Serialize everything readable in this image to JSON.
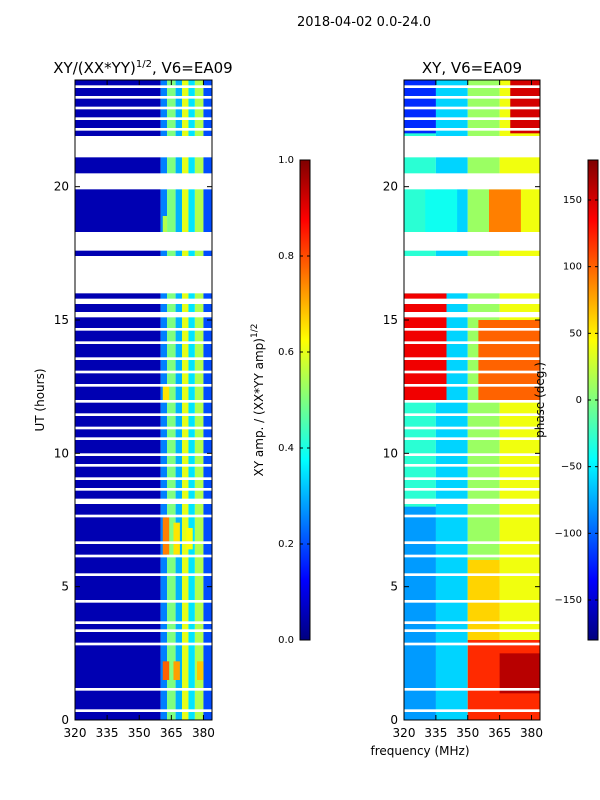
{
  "figure": {
    "suptitle": "2018-04-02 0.0-24.0",
    "xlabel": "frequency (MHz)"
  },
  "colormap": {
    "name": "jet",
    "stops": [
      "#00007f",
      "#0000ff",
      "#007fff",
      "#00ffff",
      "#7fff7f",
      "#ffff00",
      "#ff7f00",
      "#ff0000",
      "#7f0000"
    ]
  },
  "chart_data": [
    {
      "type": "heatmap",
      "title_main": "XY/(XX*YY)",
      "title_exp": "1/2",
      "title_rest": ", V6=EA09",
      "ylabel": "UT (hours)",
      "xlim": [
        320,
        384
      ],
      "ylim": [
        0,
        24
      ],
      "xticks": [
        320,
        335,
        350,
        365,
        380
      ],
      "yticks": [
        0,
        5,
        10,
        15,
        20
      ],
      "colorbar": {
        "label_main": "XY amp. / (XX*YY amp)",
        "label_exp": "1/2",
        "range": [
          0.0,
          1.0
        ],
        "ticks": [
          "0.0",
          "0.2",
          "0.4",
          "0.6",
          "0.8",
          "1.0"
        ],
        "tick_values": [
          0.0,
          0.2,
          0.4,
          0.6,
          0.8,
          1.0
        ]
      },
      "gaps_hours": [
        [
          0.3,
          0.4
        ],
        [
          1.1,
          1.2
        ],
        [
          2.8,
          2.9
        ],
        [
          3.3,
          3.4
        ],
        [
          3.6,
          3.7
        ],
        [
          4.4,
          4.5
        ],
        [
          5.4,
          5.5
        ],
        [
          6.1,
          6.2
        ],
        [
          6.6,
          6.7
        ],
        [
          7.6,
          7.7
        ],
        [
          8.1,
          8.3
        ],
        [
          8.6,
          8.7
        ],
        [
          9.0,
          9.1
        ],
        [
          9.5,
          9.6
        ],
        [
          9.9,
          10.0
        ],
        [
          10.5,
          10.6
        ],
        [
          10.9,
          11.0
        ],
        [
          11.4,
          11.5
        ],
        [
          11.9,
          12.0
        ],
        [
          12.5,
          12.6
        ],
        [
          13.0,
          13.1
        ],
        [
          13.5,
          13.6
        ],
        [
          14.1,
          14.2
        ],
        [
          14.6,
          14.7
        ],
        [
          15.1,
          15.3
        ],
        [
          15.6,
          15.8
        ],
        [
          16.0,
          17.4
        ],
        [
          17.6,
          18.3
        ],
        [
          19.9,
          20.5
        ],
        [
          21.1,
          21.9
        ],
        [
          22.1,
          22.2
        ],
        [
          22.5,
          22.6
        ],
        [
          22.9,
          23.0
        ],
        [
          23.3,
          23.4
        ],
        [
          23.7,
          23.8
        ]
      ],
      "regions": [
        {
          "x": [
            320,
            360
          ],
          "y": [
            0,
            24
          ],
          "value": 0.05
        },
        {
          "x": [
            360,
            363
          ],
          "y": [
            0,
            24
          ],
          "value": 0.25
        },
        {
          "x": [
            363,
            367
          ],
          "y": [
            0,
            24
          ],
          "value": 0.5
        },
        {
          "x": [
            367,
            370
          ],
          "y": [
            0,
            24
          ],
          "value": 0.3
        },
        {
          "x": [
            370,
            373
          ],
          "y": [
            0,
            24
          ],
          "value": 0.6
        },
        {
          "x": [
            373,
            376
          ],
          "y": [
            0,
            24
          ],
          "value": 0.35
        },
        {
          "x": [
            376,
            380
          ],
          "y": [
            0,
            24
          ],
          "value": 0.55
        },
        {
          "x": [
            380,
            384
          ],
          "y": [
            0,
            24
          ],
          "value": 0.2
        },
        {
          "x": [
            361,
            364
          ],
          "y": [
            1.5,
            2.2
          ],
          "value": 0.78
        },
        {
          "x": [
            366,
            369
          ],
          "y": [
            1.5,
            2.2
          ],
          "value": 0.72
        },
        {
          "x": [
            377,
            380
          ],
          "y": [
            1.5,
            2.2
          ],
          "value": 0.68
        },
        {
          "x": [
            361,
            364
          ],
          "y": [
            6.2,
            7.6
          ],
          "value": 0.75
        },
        {
          "x": [
            366,
            369
          ],
          "y": [
            6.2,
            7.4
          ],
          "value": 0.65
        },
        {
          "x": [
            372,
            375
          ],
          "y": [
            6.4,
            7.2
          ],
          "value": 0.62
        },
        {
          "x": [
            361,
            364
          ],
          "y": [
            12.0,
            12.6
          ],
          "value": 0.65
        },
        {
          "x": [
            361,
            363
          ],
          "y": [
            18.3,
            18.9
          ],
          "value": 0.55
        }
      ]
    },
    {
      "type": "heatmap",
      "title_main": "XY, V6=EA09",
      "xlim": [
        320,
        384
      ],
      "ylim": [
        0,
        24
      ],
      "xticks": [
        320,
        335,
        350,
        365,
        380
      ],
      "yticks": [
        0,
        5,
        10,
        15,
        20
      ],
      "colorbar": {
        "label_main": "phase (deg.)",
        "range": [
          -180,
          180
        ],
        "ticks": [
          "−150",
          "−100",
          "−50",
          "0",
          "50",
          "100",
          "150"
        ],
        "tick_values": [
          -150,
          -100,
          -50,
          0,
          50,
          100,
          150
        ]
      },
      "gaps_hours": [
        [
          0.3,
          0.4
        ],
        [
          1.1,
          1.2
        ],
        [
          2.8,
          2.9
        ],
        [
          3.3,
          3.4
        ],
        [
          3.6,
          3.7
        ],
        [
          4.4,
          4.5
        ],
        [
          5.4,
          5.5
        ],
        [
          6.1,
          6.2
        ],
        [
          6.6,
          6.7
        ],
        [
          7.6,
          7.7
        ],
        [
          8.1,
          8.3
        ],
        [
          8.6,
          8.7
        ],
        [
          9.0,
          9.1
        ],
        [
          9.5,
          9.6
        ],
        [
          9.9,
          10.0
        ],
        [
          10.5,
          10.6
        ],
        [
          10.9,
          11.0
        ],
        [
          11.4,
          11.5
        ],
        [
          11.9,
          12.0
        ],
        [
          12.5,
          12.6
        ],
        [
          13.0,
          13.1
        ],
        [
          13.5,
          13.6
        ],
        [
          14.1,
          14.2
        ],
        [
          14.6,
          14.7
        ],
        [
          15.1,
          15.3
        ],
        [
          15.6,
          15.8
        ],
        [
          16.0,
          17.4
        ],
        [
          17.6,
          18.3
        ],
        [
          19.9,
          20.5
        ],
        [
          21.1,
          21.9
        ],
        [
          22.1,
          22.2
        ],
        [
          22.5,
          22.6
        ],
        [
          22.9,
          23.0
        ],
        [
          23.3,
          23.4
        ],
        [
          23.7,
          23.8
        ]
      ],
      "regions": [
        {
          "x": [
            320,
            335
          ],
          "y": [
            0,
            24
          ],
          "value": -30
        },
        {
          "x": [
            335,
            350
          ],
          "y": [
            0,
            24
          ],
          "value": -60
        },
        {
          "x": [
            350,
            365
          ],
          "y": [
            0,
            24
          ],
          "value": 10
        },
        {
          "x": [
            365,
            384
          ],
          "y": [
            0,
            24
          ],
          "value": 40
        },
        {
          "x": [
            320,
            335
          ],
          "y": [
            0,
            8
          ],
          "value": -80
        },
        {
          "x": [
            350,
            384
          ],
          "y": [
            0,
            3
          ],
          "value": 120
        },
        {
          "x": [
            365,
            384
          ],
          "y": [
            1,
            2.5
          ],
          "value": 160
        },
        {
          "x": [
            350,
            365
          ],
          "y": [
            3,
            6
          ],
          "value": 60
        },
        {
          "x": [
            320,
            340
          ],
          "y": [
            12,
            16
          ],
          "value": 140
        },
        {
          "x": [
            355,
            384
          ],
          "y": [
            12,
            15
          ],
          "value": 100
        },
        {
          "x": [
            330,
            345
          ],
          "y": [
            18.3,
            19.9
          ],
          "value": -40
        },
        {
          "x": [
            360,
            375
          ],
          "y": [
            18.3,
            19.9
          ],
          "value": 90
        },
        {
          "x": [
            370,
            384
          ],
          "y": [
            22,
            24
          ],
          "value": 150
        },
        {
          "x": [
            320,
            335
          ],
          "y": [
            22,
            24
          ],
          "value": -120
        }
      ]
    }
  ]
}
